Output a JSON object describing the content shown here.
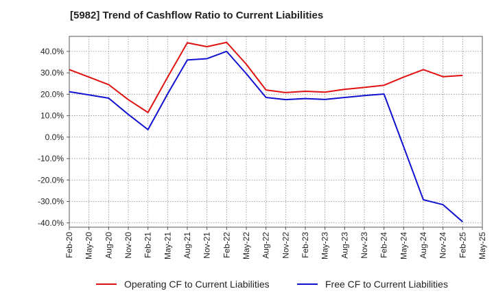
{
  "chart_data": {
    "type": "line",
    "title": "[5982]  Trend of Cashflow Ratio to Current Liabilities",
    "xlabel": "",
    "ylabel": "",
    "x_ticks": [
      "Feb-20",
      "May-20",
      "Aug-20",
      "Nov-20",
      "Feb-21",
      "May-21",
      "Aug-21",
      "Nov-21",
      "Feb-22",
      "May-22",
      "Aug-22",
      "Nov-22",
      "Feb-23",
      "May-23",
      "Aug-23",
      "Nov-23",
      "Feb-24",
      "May-24",
      "Aug-24",
      "Nov-24",
      "Feb-25",
      "May-25"
    ],
    "y_ticks": [
      "40.0%",
      "30.0%",
      "20.0%",
      "10.0%",
      "0.0%",
      "-10.0%",
      "-20.0%",
      "-30.0%",
      "-40.0%"
    ],
    "ylim": [
      -42,
      47
    ],
    "y_tick_values": [
      40,
      30,
      20,
      10,
      0,
      -10,
      -20,
      -30,
      -40
    ],
    "grid": true,
    "legend_position": "bottom",
    "series": [
      {
        "name": "Operating CF to Current Liabilities",
        "color": "#e01010",
        "x": [
          "Feb-20",
          "May-20",
          "Aug-20",
          "Nov-20",
          "Feb-21",
          "May-21",
          "Aug-21",
          "Nov-21",
          "Feb-22",
          "May-22",
          "Aug-22",
          "Nov-22",
          "Feb-23",
          "May-23",
          "Aug-23",
          "Nov-23",
          "Feb-24",
          "May-24",
          "Aug-24",
          "Nov-24",
          "Feb-25"
        ],
        "values": [
          31.5,
          28.0,
          24.5,
          17.5,
          11.5,
          28.0,
          44.0,
          42.2,
          44.2,
          34.0,
          22.0,
          20.8,
          21.4,
          21.0,
          22.3,
          23.2,
          24.2,
          28.0,
          31.5,
          28.2,
          28.8
        ]
      },
      {
        "name": "Free CF to Current Liabilities",
        "color": "#1010d0",
        "x": [
          "Feb-20",
          "May-20",
          "Aug-20",
          "Nov-20",
          "Feb-21",
          "May-21",
          "Aug-21",
          "Nov-21",
          "Feb-22",
          "May-22",
          "Aug-22",
          "Nov-22",
          "Feb-23",
          "May-23",
          "Aug-23",
          "Nov-23",
          "Feb-24",
          "May-24",
          "Aug-24",
          "Nov-24",
          "Feb-25"
        ],
        "values": [
          21.2,
          19.7,
          18.2,
          10.6,
          3.5,
          20.2,
          36.0,
          36.6,
          40.0,
          29.6,
          18.5,
          17.5,
          18.0,
          17.6,
          18.5,
          19.4,
          20.1,
          -4.5,
          -29.2,
          -31.5,
          -39.5
        ]
      }
    ]
  }
}
